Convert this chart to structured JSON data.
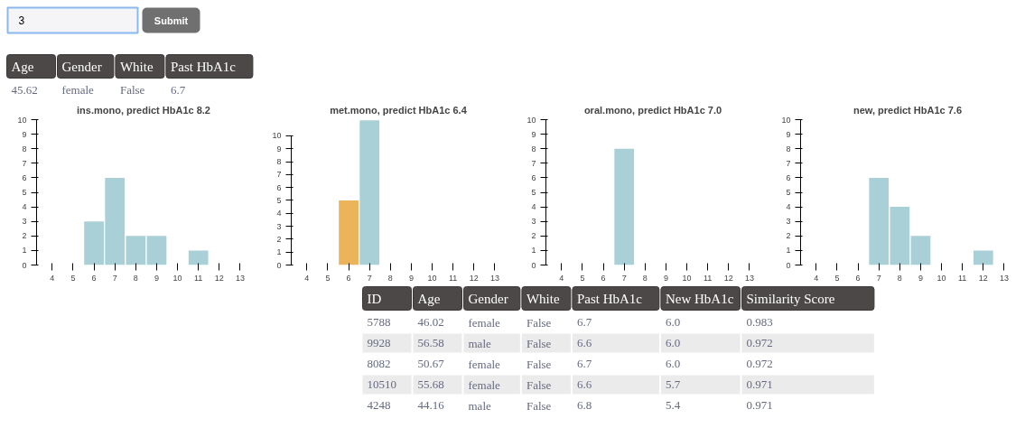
{
  "chart_data": [
    {
      "type": "other",
      "annotations": [
        "3",
        "Submit"
      ],
      "categories": [
        "Age",
        "Gender",
        "White",
        "Past HbA1c"
      ],
      "cell_labels": [
        [
          "45.62",
          "female",
          "False",
          "6.7"
        ]
      ]
    },
    {
      "type": "bar",
      "title": "ins.mono, predict HbA1c 8.2",
      "categories": [
        "4",
        "5",
        "6",
        "7",
        "8",
        "9",
        "10",
        "11",
        "12",
        "13"
      ],
      "values": [
        0,
        0,
        3,
        6,
        2,
        2,
        0,
        1,
        0,
        0
      ],
      "color": "#a8d0d6",
      "ylim": [
        0,
        10
      ],
      "yticks": [
        0,
        1,
        2,
        3,
        4,
        5,
        6,
        7,
        8,
        9,
        10
      ]
    },
    {
      "type": "bar",
      "title": "met.mono, predict HbA1c 6.4",
      "categories": [
        "4",
        "5",
        "6",
        "7",
        "8",
        "9",
        "10",
        "11",
        "12",
        "13"
      ],
      "values": [
        0,
        0,
        5,
        11.2,
        null,
        null,
        null,
        null,
        null,
        null
      ],
      "colors": [
        "#a8d0d6",
        "#a8d0d6",
        "#ebb35a",
        "#a8d0d6",
        "#a8d0d6",
        "#a8d0d6",
        "#a8d0d6",
        "#a8d0d6",
        "#a8d0d6",
        "#a8d0d6"
      ],
      "ylim": [
        0,
        11.25
      ],
      "yticks": [
        0,
        1,
        2,
        3,
        4,
        5,
        6,
        7,
        8,
        9,
        10
      ]
    },
    {
      "type": "bar",
      "title": "oral.mono, predict HbA1c 7.0",
      "categories": [
        "4",
        "5",
        "6",
        "7",
        "8",
        "9",
        "10",
        "11",
        "12",
        "13"
      ],
      "values": [
        null,
        null,
        null,
        8,
        null,
        null,
        null,
        null,
        null,
        null
      ],
      "color": "#a8d0d6",
      "ylim": [
        0,
        10
      ],
      "yticks": [
        0,
        1,
        2,
        3,
        4,
        5,
        6,
        7,
        8,
        9,
        10
      ]
    },
    {
      "type": "bar",
      "title": "new, predict HbA1c 7.6",
      "categories": [
        "4",
        "5",
        "6",
        "7",
        "8",
        "9",
        "10",
        "11",
        "12",
        "13"
      ],
      "values": [
        0,
        0,
        0,
        6,
        4,
        2,
        0,
        0,
        1,
        0
      ],
      "color": "#a8d0d6",
      "ylim": [
        0,
        10
      ],
      "yticks": [
        0,
        1,
        2,
        3,
        4,
        5,
        6,
        7,
        8,
        9,
        10
      ]
    },
    {
      "type": "other",
      "categories": [
        "ID",
        "Age",
        "Gender",
        "White",
        "Past HbA1c",
        "New HbA1c",
        "Similarity Score"
      ],
      "cell_labels": [
        [
          "5788",
          "46.02",
          "female",
          "False",
          "6.7",
          "6.0",
          "0.983"
        ],
        [
          "9928",
          "56.58",
          "male",
          "False",
          "6.6",
          "6.0",
          "0.972"
        ],
        [
          "8082",
          "50.67",
          "female",
          "False",
          "6.7",
          "6.0",
          "0.972"
        ],
        [
          "10510",
          "55.68",
          "female",
          "False",
          "6.6",
          "5.7",
          "0.971"
        ],
        [
          "4248",
          "44.16",
          "male",
          "False",
          "6.8",
          "5.4",
          "0.971"
        ]
      ]
    }
  ]
}
